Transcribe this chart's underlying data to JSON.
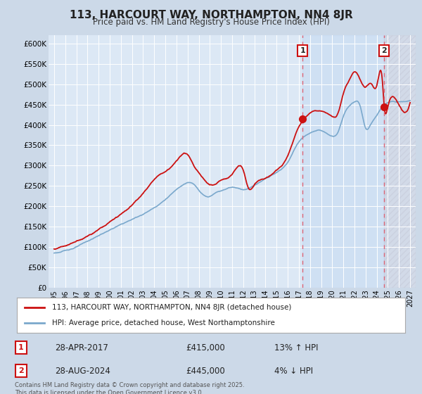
{
  "title": "113, HARCOURT WAY, NORTHAMPTON, NN4 8JR",
  "subtitle": "Price paid vs. HM Land Registry's House Price Index (HPI)",
  "ylim": [
    0,
    620000
  ],
  "yticks": [
    0,
    50000,
    100000,
    150000,
    200000,
    250000,
    300000,
    350000,
    400000,
    450000,
    500000,
    550000,
    600000
  ],
  "ytick_labels": [
    "£0",
    "£50K",
    "£100K",
    "£150K",
    "£200K",
    "£250K",
    "£300K",
    "£350K",
    "£400K",
    "£450K",
    "£500K",
    "£550K",
    "£600K"
  ],
  "bg_color": "#ccd9e8",
  "plot_bg_color": "#dce8f5",
  "line_color_red": "#cc1111",
  "line_color_blue": "#7aa8cc",
  "dashed_line_color": "#dd6677",
  "sale1_label": "1",
  "sale1_date": "28-APR-2017",
  "sale1_price": "£415,000",
  "sale1_hpi": "13% ↑ HPI",
  "sale1_year": 2017.33,
  "sale1_value": 415000,
  "sale2_label": "2",
  "sale2_date": "28-AUG-2024",
  "sale2_price": "£445,000",
  "sale2_hpi": "4% ↓ HPI",
  "sale2_year": 2024.67,
  "sale2_value": 445000,
  "legend_label_red": "113, HARCOURT WAY, NORTHAMPTON, NN4 8JR (detached house)",
  "legend_label_blue": "HPI: Average price, detached house, West Northamptonshire",
  "footer": "Contains HM Land Registry data © Crown copyright and database right 2025.\nThis data is licensed under the Open Government Licence v3.0.",
  "xlim_start": 1994.5,
  "xlim_end": 2027.5,
  "xticks": [
    1995,
    1996,
    1997,
    1998,
    1999,
    2000,
    2001,
    2002,
    2003,
    2004,
    2005,
    2006,
    2007,
    2008,
    2009,
    2010,
    2011,
    2012,
    2013,
    2014,
    2015,
    2016,
    2017,
    2018,
    2019,
    2020,
    2021,
    2022,
    2023,
    2024,
    2025,
    2026,
    2027
  ]
}
